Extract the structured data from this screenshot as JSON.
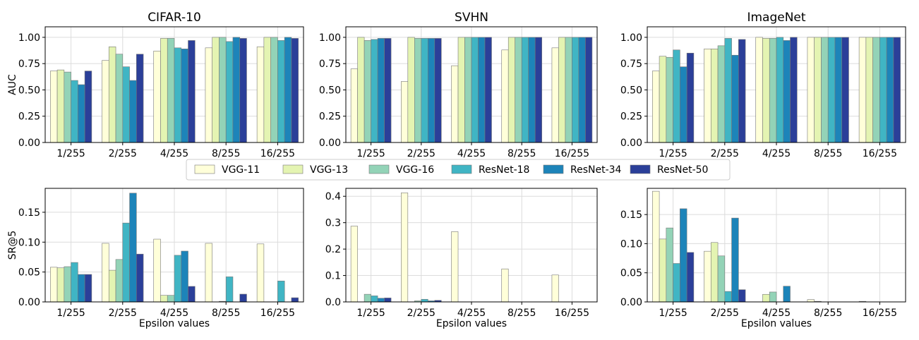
{
  "legend": {
    "entries": [
      {
        "name": "VGG-11",
        "color": "#ffffd9"
      },
      {
        "name": "VGG-13",
        "color": "#e4f4b2"
      },
      {
        "name": "VGG-16",
        "color": "#93d3b7"
      },
      {
        "name": "ResNet-18",
        "color": "#40b5c4"
      },
      {
        "name": "ResNet-34",
        "color": "#1d84b9"
      },
      {
        "name": "ResNet-50",
        "color": "#2b3f99"
      }
    ],
    "placement": "center"
  },
  "chart_data": [
    {
      "type": "bar",
      "title": "CIFAR-10",
      "xlabel": "",
      "ylabel": "AUC",
      "categories": [
        "1/255",
        "2/255",
        "4/255",
        "8/255",
        "16/255"
      ],
      "ylim": [
        0,
        1.1
      ],
      "yticks": [
        0,
        0.25,
        0.5,
        0.75,
        1.0
      ],
      "ytick_labels": [
        "0.00",
        "0.25",
        "0.50",
        "0.75",
        "1.00"
      ],
      "grid": true,
      "series": [
        {
          "name": "VGG-11",
          "values": [
            0.68,
            0.78,
            0.87,
            0.9,
            0.91
          ]
        },
        {
          "name": "VGG-13",
          "values": [
            0.69,
            0.91,
            0.99,
            1.0,
            1.0
          ]
        },
        {
          "name": "VGG-16",
          "values": [
            0.67,
            0.84,
            0.99,
            1.0,
            1.0
          ]
        },
        {
          "name": "ResNet-18",
          "values": [
            0.59,
            0.72,
            0.9,
            0.96,
            0.97
          ]
        },
        {
          "name": "ResNet-34",
          "values": [
            0.55,
            0.59,
            0.89,
            1.0,
            1.0
          ]
        },
        {
          "name": "ResNet-50",
          "values": [
            0.68,
            0.84,
            0.97,
            0.99,
            0.99
          ]
        }
      ]
    },
    {
      "type": "bar",
      "title": "SVHN",
      "xlabel": "",
      "ylabel": "",
      "categories": [
        "1/255",
        "2/255",
        "4/255",
        "8/255",
        "16/255"
      ],
      "ylim": [
        0,
        1.1
      ],
      "yticks": [
        0,
        0.25,
        0.5,
        0.75,
        1.0
      ],
      "ytick_labels": [
        "0.00",
        "0.25",
        "0.50",
        "0.75",
        "1.00"
      ],
      "grid": true,
      "series": [
        {
          "name": "VGG-11",
          "values": [
            0.7,
            0.58,
            0.73,
            0.88,
            0.9
          ]
        },
        {
          "name": "VGG-13",
          "values": [
            1.0,
            1.0,
            1.0,
            1.0,
            1.0
          ]
        },
        {
          "name": "VGG-16",
          "values": [
            0.97,
            0.99,
            1.0,
            1.0,
            1.0
          ]
        },
        {
          "name": "ResNet-18",
          "values": [
            0.98,
            0.99,
            1.0,
            1.0,
            1.0
          ]
        },
        {
          "name": "ResNet-34",
          "values": [
            0.99,
            0.99,
            1.0,
            1.0,
            1.0
          ]
        },
        {
          "name": "ResNet-50",
          "values": [
            0.99,
            0.99,
            1.0,
            1.0,
            1.0
          ]
        }
      ]
    },
    {
      "type": "bar",
      "title": "ImageNet",
      "xlabel": "",
      "ylabel": "",
      "categories": [
        "1/255",
        "2/255",
        "4/255",
        "8/255",
        "16/255"
      ],
      "ylim": [
        0,
        1.1
      ],
      "yticks": [
        0,
        0.25,
        0.5,
        0.75,
        1.0
      ],
      "ytick_labels": [
        "0.00",
        "0.25",
        "0.50",
        "0.75",
        "1.00"
      ],
      "grid": true,
      "series": [
        {
          "name": "VGG-11",
          "values": [
            0.68,
            0.89,
            1.0,
            1.0,
            1.0
          ]
        },
        {
          "name": "VGG-13",
          "values": [
            0.82,
            0.89,
            0.99,
            1.0,
            1.0
          ]
        },
        {
          "name": "VGG-16",
          "values": [
            0.81,
            0.92,
            0.99,
            1.0,
            1.0
          ]
        },
        {
          "name": "ResNet-18",
          "values": [
            0.88,
            0.99,
            1.0,
            1.0,
            1.0
          ]
        },
        {
          "name": "ResNet-34",
          "values": [
            0.72,
            0.83,
            0.97,
            1.0,
            1.0
          ]
        },
        {
          "name": "ResNet-50",
          "values": [
            0.85,
            0.98,
            1.0,
            1.0,
            1.0
          ]
        }
      ]
    },
    {
      "type": "bar",
      "title": "",
      "xlabel": "Epsilon values",
      "ylabel": "SR@5",
      "categories": [
        "1/255",
        "2/255",
        "4/255",
        "8/255",
        "16/255"
      ],
      "ylim": [
        0,
        0.19
      ],
      "yticks": [
        0,
        0.05,
        0.1,
        0.15
      ],
      "ytick_labels": [
        "0.00",
        "0.05",
        "0.10",
        "0.15"
      ],
      "grid": true,
      "series": [
        {
          "name": "VGG-11",
          "values": [
            0.058,
            0.098,
            0.105,
            0.098,
            0.097
          ]
        },
        {
          "name": "VGG-13",
          "values": [
            0.057,
            0.053,
            0.011,
            0.0,
            0.0
          ]
        },
        {
          "name": "VGG-16",
          "values": [
            0.059,
            0.071,
            0.011,
            0.001,
            0.0
          ]
        },
        {
          "name": "ResNet-18",
          "values": [
            0.066,
            0.132,
            0.078,
            0.042,
            0.035
          ]
        },
        {
          "name": "ResNet-34",
          "values": [
            0.046,
            0.182,
            0.085,
            0.0,
            0.0
          ]
        },
        {
          "name": "ResNet-50",
          "values": [
            0.046,
            0.08,
            0.026,
            0.013,
            0.007
          ]
        }
      ]
    },
    {
      "type": "bar",
      "title": "",
      "xlabel": "Epsilon values",
      "ylabel": "",
      "categories": [
        "1/255",
        "2/255",
        "4/255",
        "8/255",
        "16/255"
      ],
      "ylim": [
        0,
        0.43
      ],
      "yticks": [
        0,
        0.1,
        0.2,
        0.3,
        0.4
      ],
      "ytick_labels": [
        "0.0",
        "0.1",
        "0.2",
        "0.3",
        "0.4"
      ],
      "grid": true,
      "series": [
        {
          "name": "VGG-11",
          "values": [
            0.287,
            0.413,
            0.266,
            0.125,
            0.102
          ]
        },
        {
          "name": "VGG-13",
          "values": [
            0.0,
            0.0,
            0.0,
            0.0,
            0.0
          ]
        },
        {
          "name": "VGG-16",
          "values": [
            0.029,
            0.004,
            0.0,
            0.0,
            0.0
          ]
        },
        {
          "name": "ResNet-18",
          "values": [
            0.023,
            0.01,
            0.0,
            0.0,
            0.0
          ]
        },
        {
          "name": "ResNet-34",
          "values": [
            0.014,
            0.004,
            0.0,
            0.0,
            0.0
          ]
        },
        {
          "name": "ResNet-50",
          "values": [
            0.015,
            0.006,
            0.0,
            0.0,
            0.0
          ]
        }
      ]
    },
    {
      "type": "bar",
      "title": "",
      "xlabel": "Epsilon values",
      "ylabel": "",
      "categories": [
        "1/255",
        "2/255",
        "4/255",
        "8/255",
        "16/255"
      ],
      "ylim": [
        0,
        0.195
      ],
      "yticks": [
        0,
        0.05,
        0.1,
        0.15
      ],
      "ytick_labels": [
        "0.00",
        "0.05",
        "0.10",
        "0.15"
      ],
      "grid": true,
      "series": [
        {
          "name": "VGG-11",
          "values": [
            0.19,
            0.087,
            0.0,
            0.004,
            0.001
          ]
        },
        {
          "name": "VGG-13",
          "values": [
            0.108,
            0.102,
            0.013,
            0.001,
            0.0
          ]
        },
        {
          "name": "VGG-16",
          "values": [
            0.127,
            0.079,
            0.017,
            0.0,
            0.0
          ]
        },
        {
          "name": "ResNet-18",
          "values": [
            0.066,
            0.018,
            0.0,
            0.0,
            0.0
          ]
        },
        {
          "name": "ResNet-34",
          "values": [
            0.16,
            0.144,
            0.027,
            0.0,
            0.0
          ]
        },
        {
          "name": "ResNet-50",
          "values": [
            0.085,
            0.021,
            0.0,
            0.0,
            0.0
          ]
        }
      ]
    }
  ]
}
